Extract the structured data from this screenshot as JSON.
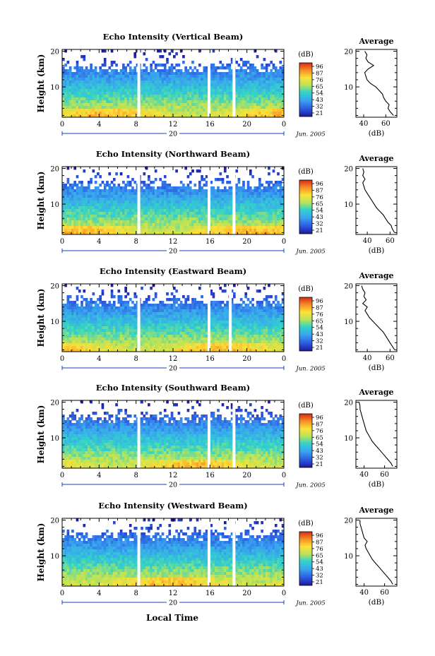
{
  "figure": {
    "footer_label": "Local Time",
    "date_label": "Jun. 2005",
    "day_label": "20",
    "ylabel": "Height (km)",
    "colorbar_unit": "(dB)",
    "colorbar_ticks": [
      "96",
      "87",
      "76",
      "65",
      "54",
      "43",
      "32",
      "21"
    ],
    "profile_title": "Average",
    "profile_xlabel": "(dB)"
  },
  "chart_data": [
    {
      "type": "heatmap",
      "title": "Echo Intensity (Vertical Beam)",
      "xlabel": "",
      "ylabel": "Height (km)",
      "x_ticks": [
        "0",
        "4",
        "8",
        "12",
        "16",
        "20",
        "0"
      ],
      "y_ticks": [
        "20",
        "10"
      ],
      "xlim": [
        0,
        24
      ],
      "ylim": [
        1.5,
        20.5
      ],
      "colorbar": {
        "unit": "(dB)",
        "ticks": [
          96,
          87,
          76,
          65,
          54,
          43,
          32,
          21
        ]
      },
      "data_gaps_hours": [
        8.3,
        15.9,
        18.6
      ],
      "profile": {
        "title": "Average",
        "xlabel": "(dB)",
        "x_ticks": [
          "40",
          "60"
        ],
        "y_ticks": [
          "20",
          "10"
        ],
        "xlim": [
          33,
          70
        ],
        "ylim": [
          1.5,
          20.5
        ],
        "height_km": [
          2,
          3,
          4,
          5,
          6,
          7,
          8,
          9,
          10,
          11,
          12,
          13,
          14,
          15,
          16,
          17,
          18,
          19,
          20
        ],
        "intensity_db": [
          67,
          64,
          62,
          63,
          60,
          58,
          57,
          54,
          51,
          46,
          43,
          42,
          41,
          44,
          49,
          44,
          42,
          43,
          41
        ]
      }
    },
    {
      "type": "heatmap",
      "title": "Echo Intensity (Northward Beam)",
      "xlabel": "",
      "ylabel": "Height (km)",
      "x_ticks": [
        "0",
        "4",
        "8",
        "12",
        "16",
        "20",
        "0"
      ],
      "y_ticks": [
        "20",
        "10"
      ],
      "xlim": [
        0,
        24
      ],
      "ylim": [
        1.5,
        20.5
      ],
      "colorbar": {
        "unit": "(dB)",
        "ticks": [
          96,
          87,
          76,
          65,
          54,
          43,
          32,
          21
        ]
      },
      "data_gaps_hours": [
        8.3,
        15.9,
        18.6
      ],
      "profile": {
        "title": "Average",
        "xlabel": "(dB)",
        "x_ticks": [
          "40",
          "60"
        ],
        "y_ticks": [
          "20",
          "10"
        ],
        "xlim": [
          30,
          66
        ],
        "ylim": [
          1.5,
          20.5
        ],
        "height_km": [
          2,
          3,
          4,
          5,
          6,
          7,
          8,
          9,
          10,
          11,
          12,
          13,
          14,
          15,
          16,
          17,
          18,
          19,
          20
        ],
        "intensity_db": [
          64,
          62,
          61,
          58,
          56,
          54,
          51,
          48,
          46,
          44,
          42,
          40,
          38,
          37,
          36,
          38,
          36,
          37,
          36
        ]
      }
    },
    {
      "type": "heatmap",
      "title": "Echo Intensity (Eastward Beam)",
      "xlabel": "",
      "ylabel": "Height (km)",
      "x_ticks": [
        "0",
        "4",
        "8",
        "12",
        "16",
        "20",
        "0"
      ],
      "y_ticks": [
        "20",
        "10"
      ],
      "xlim": [
        0,
        24
      ],
      "ylim": [
        1.5,
        20.5
      ],
      "colorbar": {
        "unit": "(dB)",
        "ticks": [
          96,
          87,
          76,
          65,
          54,
          43,
          32,
          21
        ]
      },
      "data_gaps_hours": [
        8.3,
        15.9,
        18.2
      ],
      "profile": {
        "title": "Average",
        "xlabel": "(dB)",
        "x_ticks": [
          "40",
          "60"
        ],
        "y_ticks": [
          "20",
          "10"
        ],
        "xlim": [
          30,
          66
        ],
        "ylim": [
          1.5,
          20.5
        ],
        "height_km": [
          2,
          3,
          4,
          5,
          6,
          7,
          8,
          9,
          10,
          11,
          12,
          13,
          14,
          15,
          16,
          17,
          18,
          19,
          20
        ],
        "intensity_db": [
          64,
          62,
          60,
          58,
          56,
          54,
          51,
          48,
          45,
          42,
          40,
          38,
          40,
          36,
          39,
          37,
          38,
          36,
          35
        ]
      }
    },
    {
      "type": "heatmap",
      "title": "Echo Intensity (Southward Beam)",
      "xlabel": "",
      "ylabel": "Height (km)",
      "x_ticks": [
        "0",
        "4",
        "8",
        "12",
        "16",
        "20",
        "0"
      ],
      "y_ticks": [
        "20",
        "10"
      ],
      "xlim": [
        0,
        24
      ],
      "ylim": [
        1.5,
        20.5
      ],
      "colorbar": {
        "unit": "(dB)",
        "ticks": [
          96,
          87,
          76,
          65,
          54,
          43,
          32,
          21
        ]
      },
      "data_gaps_hours": [
        8.3,
        15.9,
        18.6
      ],
      "profile": {
        "title": "Average",
        "xlabel": "(dB)",
        "x_ticks": [
          "40",
          "60"
        ],
        "y_ticks": [
          "20",
          "10"
        ],
        "xlim": [
          32,
          72
        ],
        "ylim": [
          1.5,
          20.5
        ],
        "height_km": [
          2,
          3,
          4,
          5,
          6,
          7,
          8,
          9,
          10,
          11,
          12,
          13,
          14,
          15,
          16,
          17,
          18,
          19,
          20
        ],
        "intensity_db": [
          68,
          66,
          63,
          60,
          57,
          54,
          51,
          48,
          46,
          44,
          42,
          41,
          40,
          39,
          38,
          37,
          36,
          36,
          35
        ]
      }
    },
    {
      "type": "heatmap",
      "title": "Echo Intensity (Westward Beam)",
      "xlabel": "Local Time",
      "ylabel": "Height (km)",
      "x_ticks": [
        "0",
        "4",
        "8",
        "12",
        "16",
        "20",
        "0"
      ],
      "y_ticks": [
        "20",
        "10"
      ],
      "xlim": [
        0,
        24
      ],
      "ylim": [
        1.5,
        20.5
      ],
      "colorbar": {
        "unit": "(dB)",
        "ticks": [
          96,
          87,
          76,
          65,
          54,
          43,
          32,
          21
        ]
      },
      "data_gaps_hours": [
        8.3,
        15.9,
        18.6
      ],
      "profile": {
        "title": "Average",
        "xlabel": "(dB)",
        "x_ticks": [
          "40",
          "60"
        ],
        "y_ticks": [
          "20",
          "10"
        ],
        "xlim": [
          32,
          72
        ],
        "ylim": [
          1.5,
          20.5
        ],
        "height_km": [
          2,
          3,
          4,
          5,
          6,
          7,
          8,
          9,
          10,
          11,
          12,
          13,
          14,
          15,
          16,
          17,
          18,
          19,
          20
        ],
        "intensity_db": [
          68,
          66,
          63,
          60,
          57,
          54,
          51,
          48,
          46,
          44,
          42,
          41,
          43,
          40,
          39,
          38,
          37,
          36,
          36
        ]
      }
    }
  ]
}
